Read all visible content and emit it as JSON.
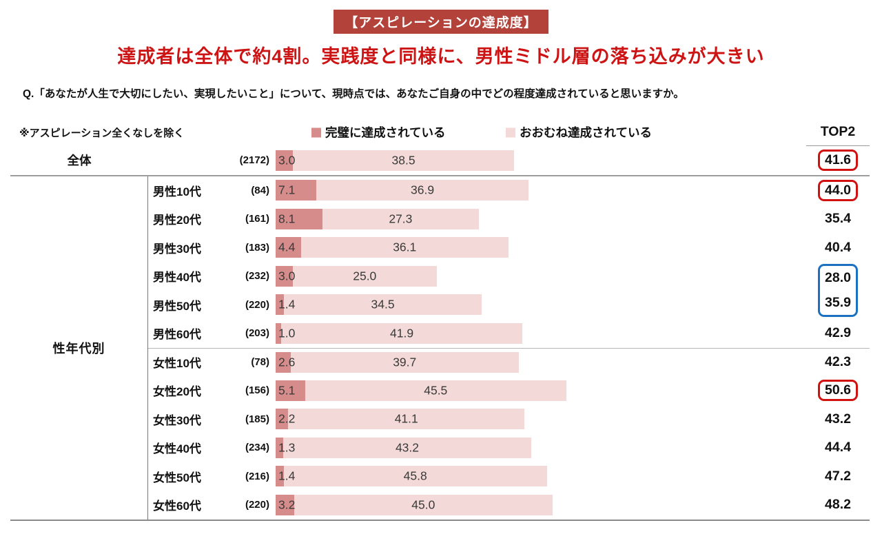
{
  "badge": "【アスピレーションの達成度】",
  "title": "達成者は全体で約4割。実践度と同様に、男性ミドル層の落ち込みが大きい",
  "question": "Q.「あなたが人生で大切にしたい、実現したいこと」について、現時点では、あなたご自身の中でどの程度達成されていると思いますか。",
  "note": "※アスピレーション全くなしを除く",
  "legend": [
    {
      "label": "完璧に達成されている",
      "color": "#d58c8a"
    },
    {
      "label": "おおむね達成されている",
      "color": "#f3d9d7"
    }
  ],
  "top2_header": "TOP2",
  "group_label": "性年代別",
  "colors": {
    "badge_bg": "#b2423a",
    "title_red": "#cc1414",
    "bar_perfect": "#d58c8a",
    "bar_mostly": "#f3d9d7",
    "highlight_red": "#d11010",
    "highlight_blue": "#1c70c0"
  },
  "total_row": {
    "label": "全体",
    "count": "(2172)",
    "perfect": "3.0",
    "mostly": "38.5",
    "top2": "41.6",
    "highlight": "red"
  },
  "rows": [
    {
      "label": "男性10代",
      "count": "(84)",
      "perfect": "7.1",
      "mostly": "36.9",
      "top2": "44.0",
      "highlight": "red",
      "separator": false
    },
    {
      "label": "男性20代",
      "count": "(161)",
      "perfect": "8.1",
      "mostly": "27.3",
      "top2": "35.4",
      "highlight": "none",
      "separator": false
    },
    {
      "label": "男性30代",
      "count": "(183)",
      "perfect": "4.4",
      "mostly": "36.1",
      "top2": "40.4",
      "highlight": "none",
      "separator": false
    },
    {
      "label": "男性40代",
      "count": "(232)",
      "perfect": "3.0",
      "mostly": "25.0",
      "top2": "28.0",
      "highlight": "blue_top",
      "separator": false
    },
    {
      "label": "男性50代",
      "count": "(220)",
      "perfect": "1.4",
      "mostly": "34.5",
      "top2": "35.9",
      "highlight": "blue_bottom",
      "separator": false
    },
    {
      "label": "男性60代",
      "count": "(203)",
      "perfect": "1.0",
      "mostly": "41.9",
      "top2": "42.9",
      "highlight": "none",
      "separator": false
    },
    {
      "label": "女性10代",
      "count": "(78)",
      "perfect": "2.6",
      "mostly": "39.7",
      "top2": "42.3",
      "highlight": "none",
      "separator": true
    },
    {
      "label": "女性20代",
      "count": "(156)",
      "perfect": "5.1",
      "mostly": "45.5",
      "top2": "50.6",
      "highlight": "red",
      "separator": false
    },
    {
      "label": "女性30代",
      "count": "(185)",
      "perfect": "2.2",
      "mostly": "41.1",
      "top2": "43.2",
      "highlight": "none",
      "separator": false
    },
    {
      "label": "女性40代",
      "count": "(234)",
      "perfect": "1.3",
      "mostly": "43.2",
      "top2": "44.4",
      "highlight": "none",
      "separator": false
    },
    {
      "label": "女性50代",
      "count": "(216)",
      "perfect": "1.4",
      "mostly": "45.8",
      "top2": "47.2",
      "highlight": "none",
      "separator": false
    },
    {
      "label": "女性60代",
      "count": "(220)",
      "perfect": "3.2",
      "mostly": "45.0",
      "top2": "48.2",
      "highlight": "none",
      "separator": false
    }
  ],
  "chart_data": {
    "type": "bar",
    "orientation": "horizontal-stacked",
    "title": "【アスピレーションの達成度】",
    "subtitle": "達成者は全体で約4割。実践度と同様に、男性ミドル層の落ち込みが大きい",
    "categories": [
      "全体",
      "男性10代",
      "男性20代",
      "男性30代",
      "男性40代",
      "男性50代",
      "男性60代",
      "女性10代",
      "女性20代",
      "女性30代",
      "女性40代",
      "女性50代",
      "女性60代"
    ],
    "sample_sizes": [
      2172,
      84,
      161,
      183,
      232,
      220,
      203,
      78,
      156,
      185,
      234,
      216,
      220
    ],
    "series": [
      {
        "name": "完璧に達成されている",
        "values": [
          3.0,
          7.1,
          8.1,
          4.4,
          3.0,
          1.4,
          1.0,
          2.6,
          5.1,
          2.2,
          1.3,
          1.4,
          3.2
        ]
      },
      {
        "name": "おおむね達成されている",
        "values": [
          38.5,
          36.9,
          27.3,
          36.1,
          25.0,
          34.5,
          41.9,
          39.7,
          45.5,
          41.1,
          43.2,
          45.8,
          45.0
        ]
      }
    ],
    "top2": [
      41.6,
      44.0,
      35.4,
      40.4,
      28.0,
      35.9,
      42.9,
      42.3,
      50.6,
      43.2,
      44.4,
      47.2,
      48.2
    ],
    "value_unit": "%",
    "xlim": [
      0,
      100
    ],
    "grid": false,
    "legend_position": "top",
    "highlights": {
      "red_box": [
        "全体",
        "男性10代",
        "女性20代"
      ],
      "blue_box": [
        "男性40代",
        "男性50代"
      ]
    }
  }
}
